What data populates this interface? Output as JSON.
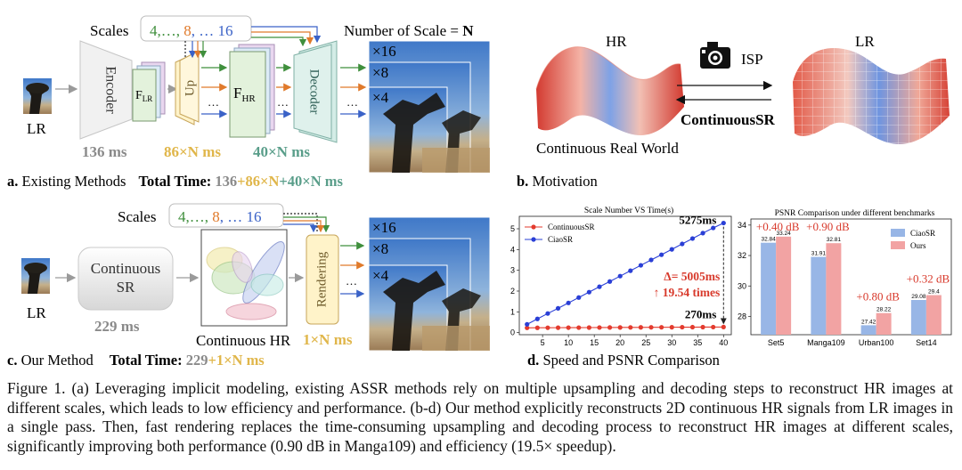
{
  "panel_a": {
    "scales_label": "Scales",
    "scales_list": [
      {
        "t": "4,…, ",
        "c": "#3f8f3c"
      },
      {
        "t": "8",
        "c": "#e07a2b"
      },
      {
        "t": ", … 16",
        "c": "#3a62c7"
      }
    ],
    "number_of_scale": "Number of Scale = ",
    "number_of_scale_n": "N",
    "lr_label": "LR",
    "encoder": "Encoder",
    "f_lr": "F",
    "f_lr_sub": "LR",
    "up": "Up",
    "f_hr": "F",
    "f_hr_sub": "HR",
    "decoder": "Decoder",
    "ellipsis": "…",
    "scale_x16": "×16",
    "scale_x8": "×8",
    "scale_x4": "×4",
    "time_encoder": "136 ms",
    "time_up": "86×N ms",
    "time_decoder": "40×N ms",
    "caption_label": "a.",
    "caption_title": "Existing Methods",
    "total_label": "Total Time: ",
    "total_p1": "136",
    "total_p2": "+86×N",
    "total_p3": "+40×N ms"
  },
  "panel_b": {
    "hr_label": "HR",
    "lr_label": "LR",
    "isp_label": "ISP",
    "continuous_sr": "ContinuousSR",
    "continuous_real_world": "Continuous Real World",
    "caption_label": "b.",
    "caption_title": "Motivation"
  },
  "panel_c": {
    "scales_label": "Scales",
    "scales_list": [
      {
        "t": "4,…, ",
        "c": "#3f8f3c"
      },
      {
        "t": "8",
        "c": "#e07a2b"
      },
      {
        "t": ", … 16",
        "c": "#3a62c7"
      }
    ],
    "lr_label": "LR",
    "continuous_sr_line1": "Continuous",
    "continuous_sr_line2": "SR",
    "time_sr": "229 ms",
    "continuous_hr": "Continuous HR",
    "rendering": "Rendering",
    "time_render": "1×N ms",
    "scale_x16": "×16",
    "scale_x8": "×8",
    "scale_x4": "×4",
    "caption_label": "c.",
    "caption_title": "Our Method",
    "total_label": "Total Time: ",
    "total_p1": "229",
    "total_p2": "+1×N ms"
  },
  "panel_d": {
    "caption_label": "d.",
    "caption_title": "Speed and PSNR Comparison"
  },
  "chart_data": [
    {
      "type": "line",
      "title": "Scale Number VS Time(s)",
      "xlabel": "",
      "ylabel": "",
      "x": [
        2,
        4,
        6,
        8,
        10,
        12,
        14,
        16,
        18,
        20,
        22,
        24,
        26,
        28,
        30,
        32,
        34,
        36,
        38,
        40
      ],
      "xticks": [
        5,
        10,
        15,
        20,
        25,
        30,
        35,
        40
      ],
      "yticks": [
        0,
        1,
        2,
        3,
        4,
        5
      ],
      "xlim": [
        0.5,
        41.5
      ],
      "ylim": [
        -0.1,
        5.6
      ],
      "series": [
        {
          "name": "ContinuousSR",
          "color": "#e33b2e",
          "values": [
            0.231,
            0.233,
            0.235,
            0.237,
            0.239,
            0.241,
            0.243,
            0.245,
            0.247,
            0.249,
            0.251,
            0.253,
            0.255,
            0.257,
            0.259,
            0.261,
            0.263,
            0.265,
            0.267,
            0.27
          ]
        },
        {
          "name": "CiaoSR",
          "color": "#2a3fd6",
          "values": [
            0.4,
            0.66,
            0.92,
            1.17,
            1.43,
            1.69,
            1.95,
            2.21,
            2.46,
            2.72,
            2.98,
            3.24,
            3.5,
            3.75,
            4.01,
            4.27,
            4.53,
            4.79,
            5.04,
            5.275
          ]
        }
      ],
      "annotations": {
        "top_value": "5275ms",
        "bottom_value": "270ms",
        "delta": "Δ= 5005ms",
        "speedup": "↑ 19.54 times"
      },
      "legend": "top-left"
    },
    {
      "type": "bar",
      "title": "PSNR Comparison under different benchmarks",
      "categories": [
        "Set5",
        "Manga109",
        "Urban100",
        "Set14"
      ],
      "ylim": [
        26.8,
        34.4
      ],
      "yticks": [
        28,
        30,
        32,
        34
      ],
      "series": [
        {
          "name": "CiaoSR",
          "color": "#98b6e6",
          "values": [
            32.84,
            31.91,
            27.42,
            29.08
          ]
        },
        {
          "name": "Ours",
          "color": "#f2a3a3",
          "values": [
            33.24,
            32.81,
            28.22,
            29.4
          ]
        }
      ],
      "gains": [
        "+0.40 dB",
        "+0.90 dB",
        "+0.80 dB",
        "+0.32 dB"
      ],
      "legend": "top-right"
    }
  ],
  "caption": {
    "text": "Figure 1. (a) Leveraging implicit modeling, existing ASSR methods rely on multiple upsampling and decoding steps to reconstruct HR images at different scales, which leads to low efficiency and performance. (b-d) Our method explicitly reconstructs 2D continuous HR signals from LR images in a single pass. Then, fast rendering replaces the time-consuming upsampling and decoding process to reconstruct HR images at different scales, significantly improving both performance (0.90 dB in Manga109) and efficiency (19.5× speedup)."
  },
  "colors": {
    "green": "#3f8f3c",
    "orange": "#e07a2b",
    "blue": "#3a62c7",
    "gold": "#e0b64a",
    "teal": "#5a9e8a",
    "gray": "#8a8a8a",
    "red": "#d83a2c"
  }
}
